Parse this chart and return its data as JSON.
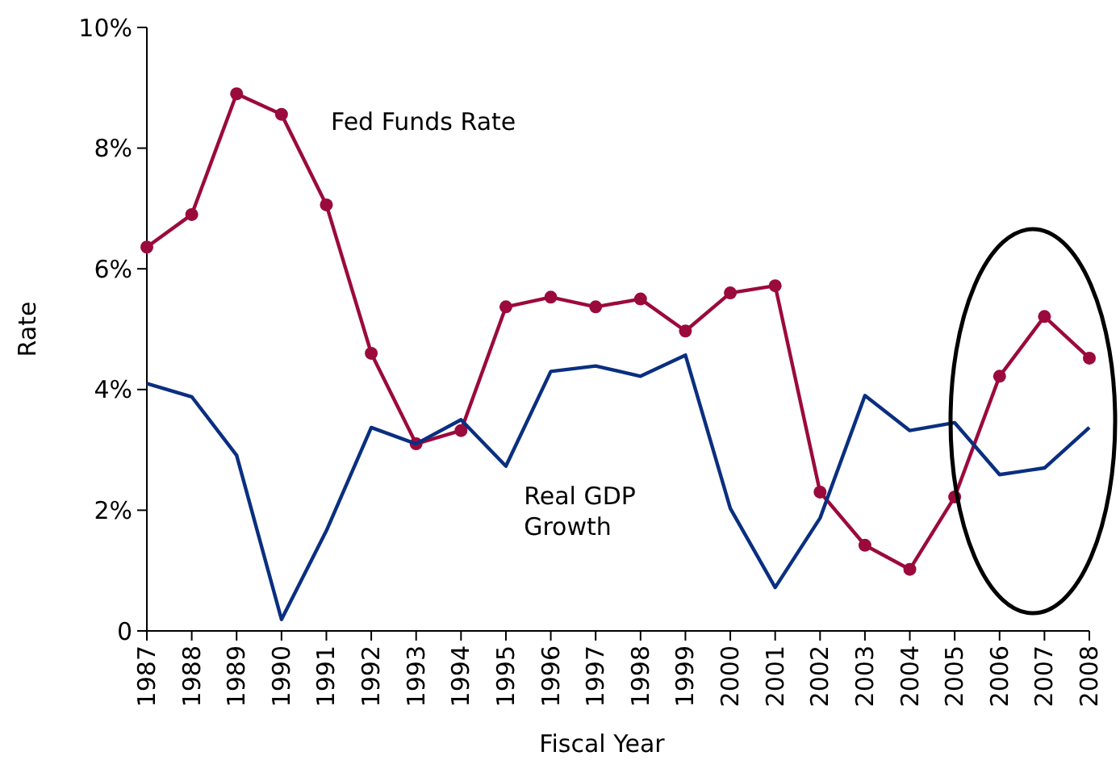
{
  "chart_data": {
    "type": "line",
    "xlabel": "Fiscal Year",
    "ylabel": "Rate",
    "categories": [
      "1987",
      "1988",
      "1989",
      "1990",
      "1991",
      "1992",
      "1993",
      "1994",
      "1995",
      "1996",
      "1997",
      "1998",
      "1999",
      "2000",
      "2001",
      "2002",
      "2003",
      "2004",
      "2005",
      "2006",
      "2007",
      "2008"
    ],
    "series": [
      {
        "name": "Fed Funds Rate",
        "color": "#9b0a3c",
        "marker": "circle",
        "values": [
          6.36,
          6.9,
          8.9,
          8.56,
          7.06,
          4.6,
          3.1,
          3.32,
          5.37,
          5.53,
          5.37,
          5.5,
          4.97,
          5.6,
          5.72,
          2.3,
          1.42,
          1.02,
          2.22,
          4.22,
          5.21,
          4.52
        ]
      },
      {
        "name": "Real GDP Growth",
        "color": "#0a2f80",
        "marker": "none",
        "values": [
          4.1,
          3.88,
          2.91,
          0.19,
          1.66,
          3.37,
          3.1,
          3.5,
          2.73,
          4.3,
          4.39,
          4.22,
          4.57,
          2.03,
          0.72,
          1.87,
          3.9,
          3.32,
          3.45,
          2.59,
          2.7,
          3.37
        ]
      }
    ],
    "ylim": [
      0,
      10
    ],
    "yticks": [
      0,
      {
        "value": 2,
        "label": "2%"
      },
      {
        "value": 4,
        "label": "4%"
      },
      {
        "value": 6,
        "label": "6%"
      },
      {
        "value": 8,
        "label": "8%"
      },
      {
        "value": 10,
        "label": "10%"
      }
    ],
    "grid": false,
    "line_style": "solid"
  }
}
